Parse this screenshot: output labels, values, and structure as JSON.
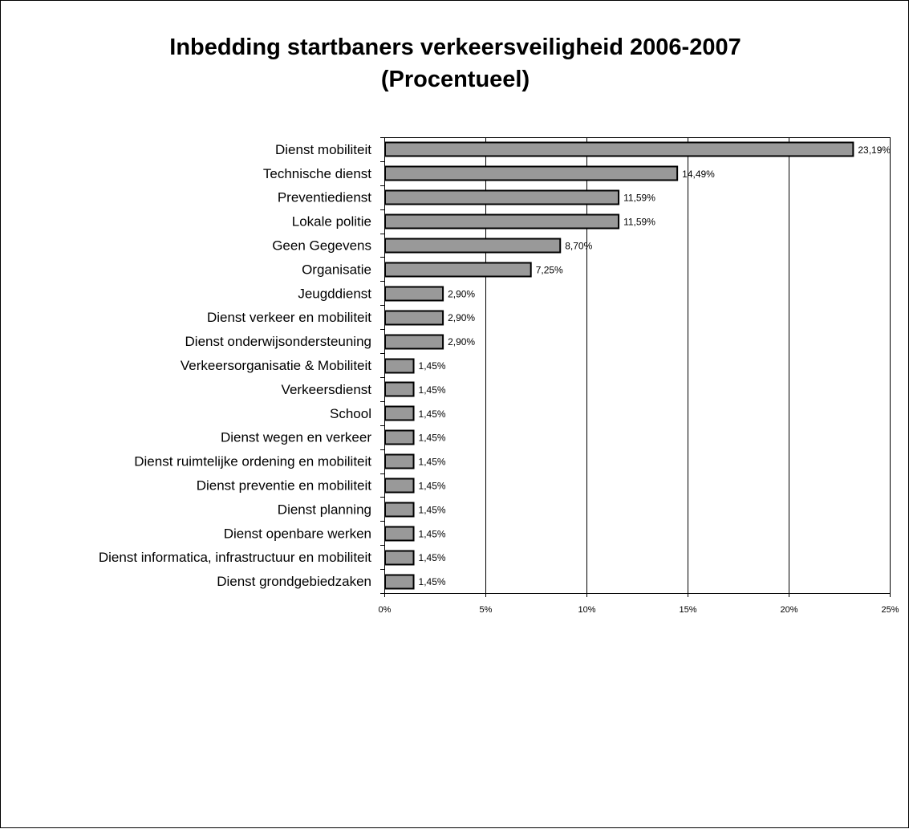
{
  "chart_data": {
    "type": "bar",
    "orientation": "horizontal",
    "title_line1": "Inbedding startbaners verkeersveiligheid 2006-2007",
    "title_line2": "(Procentueel)",
    "categories": [
      "Dienst mobiliteit",
      "Technische dienst",
      "Preventiedienst",
      "Lokale politie",
      "Geen Gegevens",
      "Organisatie",
      "Jeugddienst",
      "Dienst verkeer en mobiliteit",
      "Dienst onderwijsondersteuning",
      "Verkeersorganisatie & Mobiliteit",
      "Verkeersdienst",
      "School",
      "Dienst wegen en verkeer",
      "Dienst ruimtelijke ordening en mobiliteit",
      "Dienst preventie en mobiliteit",
      "Dienst planning",
      "Dienst openbare werken",
      "Dienst informatica, infrastructuur en mobiliteit",
      "Dienst grondgebiedzaken"
    ],
    "values": [
      23.19,
      14.49,
      11.59,
      11.59,
      8.7,
      7.25,
      2.9,
      2.9,
      2.9,
      1.45,
      1.45,
      1.45,
      1.45,
      1.45,
      1.45,
      1.45,
      1.45,
      1.45,
      1.45
    ],
    "data_labels": [
      "23,19%",
      "14,49%",
      "11,59%",
      "11,59%",
      "8,70%",
      "7,25%",
      "2,90%",
      "2,90%",
      "2,90%",
      "1,45%",
      "1,45%",
      "1,45%",
      "1,45%",
      "1,45%",
      "1,45%",
      "1,45%",
      "1,45%",
      "1,45%",
      "1,45%"
    ],
    "x_ticks": [
      0,
      5,
      10,
      15,
      20,
      25
    ],
    "x_tick_labels": [
      "0%",
      "5%",
      "10%",
      "15%",
      "20%",
      "25%"
    ],
    "xlim": [
      0,
      25
    ],
    "grid": "vertical",
    "legend": "none",
    "colors": {
      "bar_fill": "#999999",
      "bar_stroke": "#000000",
      "grid": "#000000"
    }
  }
}
